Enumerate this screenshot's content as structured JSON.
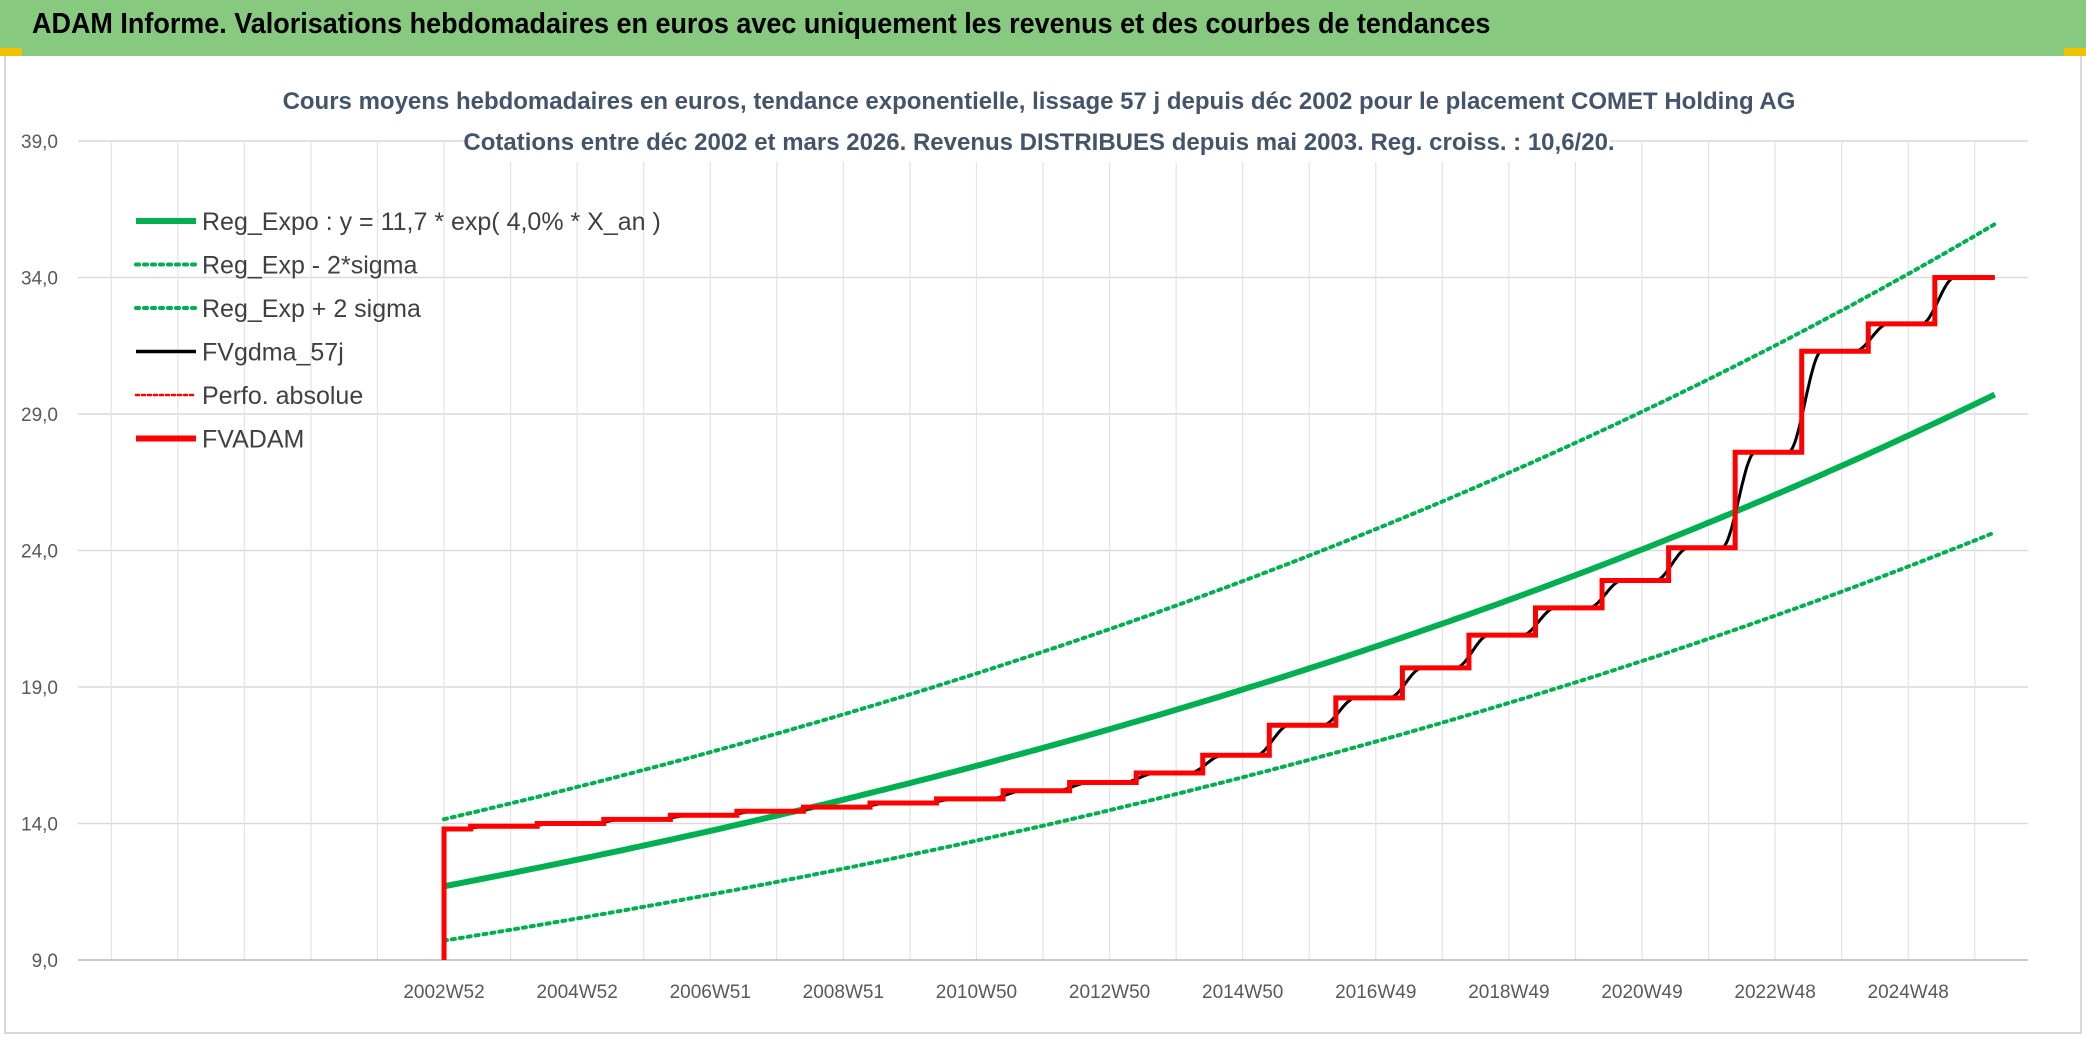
{
  "header": {
    "title": "ADAM Informe. Valorisations hebdomadaires en euros avec uniquement les revenus et des courbes de tendances"
  },
  "colors": {
    "header_bg": "#86c97f",
    "accent_yellow": "#f2c200",
    "green": "#00b050",
    "black": "#000000",
    "red": "#ff0000"
  },
  "chart_data": {
    "type": "line",
    "title": [
      "Cours moyens hebdomadaires en euros, tendance exponentielle, lissage 57 j depuis déc 2002 pour le placement COMET Holding AG",
      "Cotations entre déc 2002 et mars 2026. Revenus DISTRIBUES depuis mai 2003. Reg. croiss. : 10,6/20."
    ],
    "xlabel": "",
    "ylabel": "",
    "ylim": [
      9,
      39
    ],
    "xlim": [
      1997.5,
      2026.8
    ],
    "yticks": [
      "9,0",
      "14,0",
      "19,0",
      "24,0",
      "29,0",
      "34,0",
      "39,0"
    ],
    "xticks": [
      {
        "label": "2002W52",
        "x": 2003.0
      },
      {
        "label": "2004W52",
        "x": 2005.0
      },
      {
        "label": "2006W51",
        "x": 2007.0
      },
      {
        "label": "2008W51",
        "x": 2009.0
      },
      {
        "label": "2010W50",
        "x": 2011.0
      },
      {
        "label": "2012W50",
        "x": 2013.0
      },
      {
        "label": "2014W50",
        "x": 2015.0
      },
      {
        "label": "2016W49",
        "x": 2017.0
      },
      {
        "label": "2018W49",
        "x": 2019.0
      },
      {
        "label": "2020W49",
        "x": 2021.0
      },
      {
        "label": "2022W48",
        "x": 2023.0
      },
      {
        "label": "2024W48",
        "x": 2025.0
      }
    ],
    "legend": {
      "placement": "top-left",
      "entries": [
        {
          "label": "Reg_Expo : y = 11,7 * exp( 4,0% *  X_an )",
          "color": "#00b050",
          "style": "solid-thick"
        },
        {
          "label": "Reg_Exp - 2*sigma",
          "color": "#00b050",
          "style": "dotted"
        },
        {
          "label": "Reg_Exp + 2 sigma",
          "color": "#00b050",
          "style": "dotted"
        },
        {
          "label": "FVgdma_57j",
          "color": "#000000",
          "style": "solid"
        },
        {
          "label": "Perfo. absolue",
          "color": "#ff0000",
          "style": "dotted-thin"
        },
        {
          "label": "FVADAM",
          "color": "#ff0000",
          "style": "solid-thick"
        }
      ]
    },
    "regression": {
      "a": 11.7,
      "rate": 0.04,
      "x0": 2003.0,
      "x_end": 2026.3,
      "sigma_factor_low": 0.83,
      "sigma_factor_high": 1.21
    },
    "series": [
      {
        "name": "FVADAM",
        "start": [
          2003.0,
          9.0
        ],
        "end_x": 2026.3,
        "steps": [
          {
            "x": 2003.0,
            "y": 13.8
          },
          {
            "x": 2003.4,
            "y": 13.9
          },
          {
            "x": 2004.4,
            "y": 14.0
          },
          {
            "x": 2005.4,
            "y": 14.15
          },
          {
            "x": 2006.4,
            "y": 14.3
          },
          {
            "x": 2007.4,
            "y": 14.45
          },
          {
            "x": 2008.4,
            "y": 14.6
          },
          {
            "x": 2009.4,
            "y": 14.75
          },
          {
            "x": 2010.4,
            "y": 14.9
          },
          {
            "x": 2011.4,
            "y": 15.2
          },
          {
            "x": 2012.4,
            "y": 15.5
          },
          {
            "x": 2013.4,
            "y": 15.85
          },
          {
            "x": 2014.4,
            "y": 16.5
          },
          {
            "x": 2015.4,
            "y": 17.6
          },
          {
            "x": 2016.4,
            "y": 18.6
          },
          {
            "x": 2017.4,
            "y": 19.7
          },
          {
            "x": 2018.4,
            "y": 20.9
          },
          {
            "x": 2019.4,
            "y": 21.9
          },
          {
            "x": 2020.4,
            "y": 22.9
          },
          {
            "x": 2021.4,
            "y": 24.1
          },
          {
            "x": 2022.4,
            "y": 27.6
          },
          {
            "x": 2023.4,
            "y": 31.3
          },
          {
            "x": 2024.4,
            "y": 32.3
          },
          {
            "x": 2025.4,
            "y": 34.0
          }
        ]
      }
    ]
  }
}
